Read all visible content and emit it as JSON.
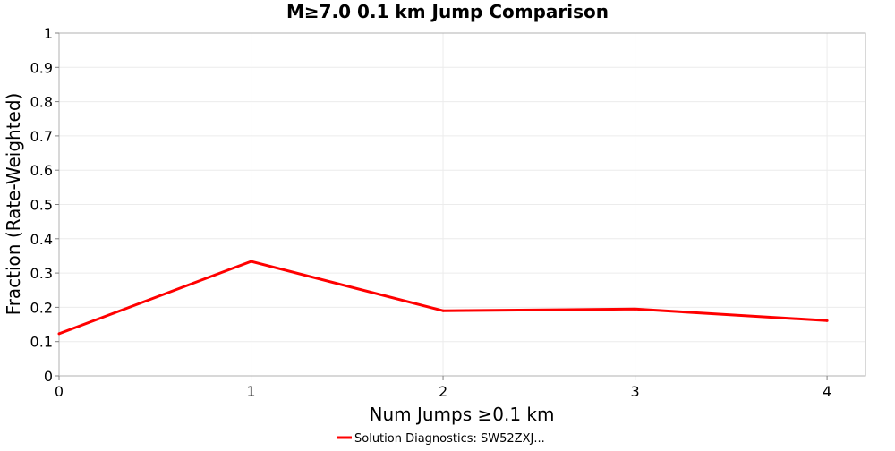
{
  "chart_data": {
    "type": "line",
    "title": "M≥7.0 0.1 km Jump Comparison",
    "xlabel": "Num Jumps ≥0.1 km",
    "ylabel": "Fraction (Rate-Weighted)",
    "xlim": [
      0,
      4.2
    ],
    "ylim": [
      0,
      1
    ],
    "x_ticks": [
      "0",
      "1",
      "2",
      "3",
      "4"
    ],
    "y_ticks": [
      "0",
      "0.1",
      "0.2",
      "0.3",
      "0.4",
      "0.5",
      "0.6",
      "0.7",
      "0.8",
      "0.9",
      "1"
    ],
    "grid": true,
    "legend_position": "bottom",
    "series": [
      {
        "name": "Solution Diagnostics: SW52ZXJ...",
        "color": "#ff0000",
        "x": [
          0,
          1,
          2,
          3,
          4
        ],
        "y": [
          0.123,
          0.334,
          0.19,
          0.195,
          0.161
        ]
      }
    ]
  }
}
